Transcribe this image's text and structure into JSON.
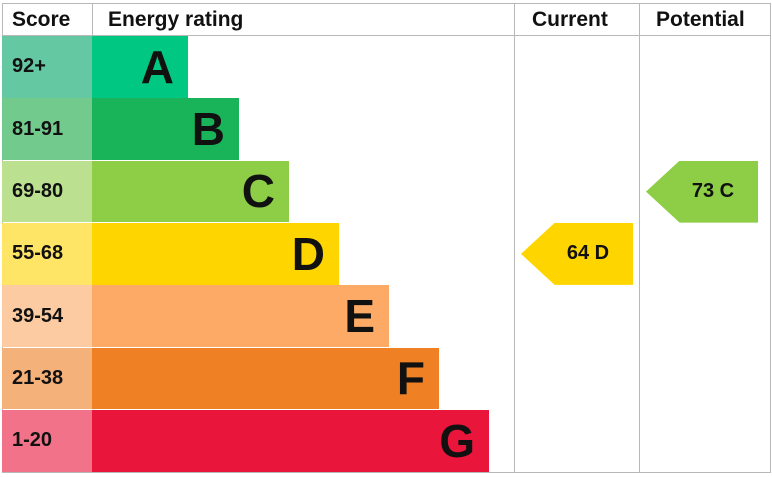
{
  "headers": {
    "score": "Score",
    "rating": "Energy rating",
    "current": "Current",
    "potential": "Potential"
  },
  "chart_data": {
    "type": "bar",
    "bands": [
      {
        "score": "92+",
        "letter": "A",
        "color": "#00c781",
        "tint": "#64c8a2"
      },
      {
        "score": "81-91",
        "letter": "B",
        "color": "#19b459",
        "tint": "#72cb8d"
      },
      {
        "score": "69-80",
        "letter": "C",
        "color": "#8dce46",
        "tint": "#bbe08f"
      },
      {
        "score": "55-68",
        "letter": "D",
        "color": "#ffd500",
        "tint": "#ffe566"
      },
      {
        "score": "39-54",
        "letter": "E",
        "color": "#fcaa65",
        "tint": "#fdcba2"
      },
      {
        "score": "21-38",
        "letter": "F",
        "color": "#ef8023",
        "tint": "#f5b17a"
      },
      {
        "score": "1-20",
        "letter": "G",
        "color": "#e9153b",
        "tint": "#f27389"
      }
    ],
    "current": {
      "value": 64,
      "letter": "D",
      "label": "64  D",
      "color": "#ffd500"
    },
    "potential": {
      "value": 73,
      "letter": "C",
      "label": "73  C",
      "color": "#8dce46"
    }
  }
}
